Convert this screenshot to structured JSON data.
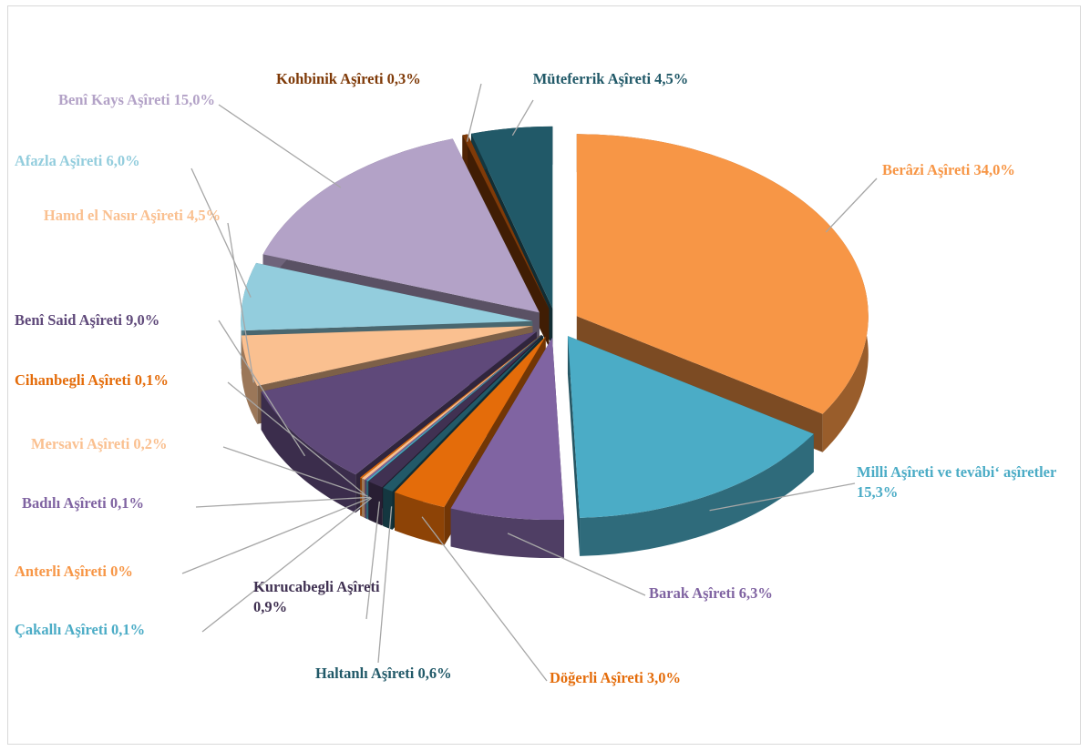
{
  "chart_data": {
    "type": "pie3d",
    "categories": [
      "Berâzi Aşîreti",
      "Milli Aşîreti ve tevâbi‘ aşîretler",
      "Barak Aşîreti",
      "Döğerli Aşîreti",
      "Haltanlı Aşîreti",
      "Kurucabegli Aşîreti",
      "Çakallı Aşîreti",
      "Anterli Aşîreti",
      "Badılı Aşîreti",
      "Mersavi Aşîreti",
      "Cihanbegli Aşîreti",
      "Benî Said Aşîreti",
      "Hamd el Nasır Aşîreti",
      "Afazla Aşîreti",
      "Benî Kays Aşîreti",
      "Kohbinik Aşîreti",
      "Müteferrik Aşîreti"
    ],
    "values": [
      34.0,
      15.3,
      6.3,
      3.0,
      0.6,
      0.9,
      0.1,
      0,
      0.1,
      0.2,
      0.1,
      9.0,
      4.5,
      6.0,
      15.0,
      0.3,
      4.5
    ],
    "value_labels": [
      "34,0%",
      "15,3%",
      "6,3%",
      "3,0%",
      "0,6%",
      "0,9%",
      "0,1%",
      "0%",
      "0,1%",
      "0,2%",
      "0,1%",
      "9,0%",
      "4,5%",
      "6,0%",
      "15,0%",
      "0,3%",
      "4,5%"
    ],
    "colors": [
      "#f79646",
      "#4bacc6",
      "#8064a2",
      "#e46c0a",
      "#215968",
      "#403152",
      "#4bacc6",
      "#f79646",
      "#8064a2",
      "#fac090",
      "#e46c0a",
      "#5f497a",
      "#fac090",
      "#93cddd",
      "#b3a2c7",
      "#7f3a08",
      "#215968"
    ]
  }
}
